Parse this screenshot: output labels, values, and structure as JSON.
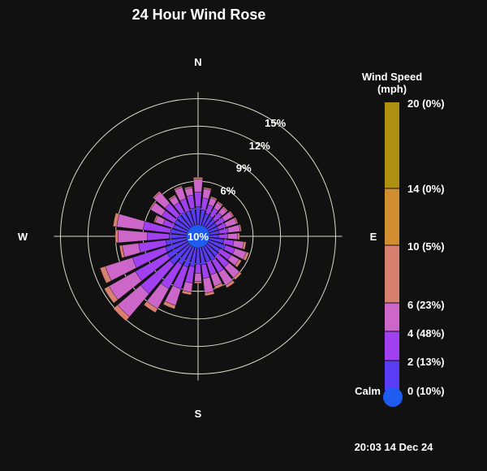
{
  "title": "24 Hour Wind Rose",
  "timestamp": "20:03 14 Dec 24",
  "compass": {
    "n": "N",
    "e": "E",
    "s": "S",
    "w": "W"
  },
  "calm_center_label": "10%",
  "colorbar": {
    "title_line1": "Wind Speed",
    "title_line2": "(mph)",
    "calm_label": "Calm",
    "levels": [
      {
        "label": "0 (10%)",
        "color": "#1e5cf0"
      },
      {
        "label": "2 (13%)",
        "color": "#5a3cf5"
      },
      {
        "label": "4 (48%)",
        "color": "#a040f0"
      },
      {
        "label": "6 (23%)",
        "color": "#cc66c8"
      },
      {
        "label": "10 (5%)",
        "color": "#d88070"
      },
      {
        "label": "14 (0%)",
        "color": "#d08e30"
      },
      {
        "label": "20 (0%)",
        "color": "#b09010"
      }
    ]
  },
  "chart_data": {
    "type": "wind-rose",
    "title": "24 Hour Wind Rose",
    "radial_ticks": [
      "6%",
      "9%",
      "12%",
      "15%"
    ],
    "radial_tick_values": [
      6,
      9,
      12,
      15
    ],
    "calm_percent": 10,
    "speed_bins": [
      "2",
      "4",
      "6",
      "10"
    ],
    "sectors": [
      {
        "dir": 0,
        "cum": [
          2.7,
          4.3,
          5.7,
          5.9
        ]
      },
      {
        "dir": 11.25,
        "cum": [
          2.4,
          3.7,
          4.7,
          4.85
        ]
      },
      {
        "dir": 22.5,
        "cum": [
          2.1,
          3.1,
          3.9,
          4.05
        ]
      },
      {
        "dir": 33.75,
        "cum": [
          2.0,
          3.0,
          3.7,
          3.85
        ]
      },
      {
        "dir": 45,
        "cum": [
          1.9,
          2.9,
          3.6,
          3.75
        ]
      },
      {
        "dir": 56.25,
        "cum": [
          1.8,
          2.8,
          3.8,
          3.95
        ]
      },
      {
        "dir": 67.5,
        "cum": [
          1.8,
          2.7,
          3.9,
          4.05
        ]
      },
      {
        "dir": 78.75,
        "cum": [
          1.8,
          2.8,
          4.1,
          4.25
        ]
      },
      {
        "dir": 90,
        "cum": [
          1.7,
          2.7,
          3.8,
          4.0
        ]
      },
      {
        "dir": 101.25,
        "cum": [
          2.3,
          3.4,
          4.5,
          4.75
        ]
      },
      {
        "dir": 112.5,
        "cum": [
          2.6,
          3.7,
          5.0,
          5.3
        ]
      },
      {
        "dir": 123.75,
        "cum": [
          2.2,
          3.6,
          4.6,
          4.9
        ]
      },
      {
        "dir": 135,
        "cum": [
          2.3,
          3.9,
          5.4,
          5.7
        ]
      },
      {
        "dir": 146.25,
        "cum": [
          2.5,
          4.0,
          5.6,
          5.9
        ]
      },
      {
        "dir": 157.5,
        "cum": [
          2.4,
          3.9,
          5.2,
          5.5
        ]
      },
      {
        "dir": 168.75,
        "cum": [
          2.6,
          4.1,
          5.7,
          6.0
        ]
      },
      {
        "dir": 180,
        "cum": [
          2.5,
          3.5,
          4.4,
          4.6
        ]
      },
      {
        "dir": 191.25,
        "cum": [
          2.8,
          4.6,
          5.6,
          5.9
        ]
      },
      {
        "dir": 202.5,
        "cum": [
          3.0,
          5.5,
          7.4,
          7.8
        ]
      },
      {
        "dir": 213.75,
        "cum": [
          3.0,
          6.0,
          8.5,
          9.0
        ]
      },
      {
        "dir": 225,
        "cum": [
          3.5,
          7.7,
          11.0,
          11.6
        ]
      },
      {
        "dir": 236.25,
        "cum": [
          3.3,
          7.3,
          10.6,
          11.2
        ]
      },
      {
        "dir": 247.5,
        "cum": [
          3.2,
          7.0,
          10.1,
          10.7
        ]
      },
      {
        "dir": 258.75,
        "cum": [
          3.0,
          6.0,
          7.8,
          8.1
        ]
      },
      {
        "dir": 270,
        "cum": [
          2.6,
          5.0,
          8.2,
          8.5
        ]
      },
      {
        "dir": 281.25,
        "cum": [
          2.5,
          5.5,
          8.4,
          8.8
        ]
      },
      {
        "dir": 292.5,
        "cum": [
          2.3,
          3.5,
          4.4,
          4.55
        ]
      },
      {
        "dir": 303.75,
        "cum": [
          2.4,
          4.0,
          5.4,
          5.55
        ]
      },
      {
        "dir": 315,
        "cum": [
          2.5,
          4.2,
          5.8,
          5.95
        ]
      },
      {
        "dir": 326.25,
        "cum": [
          2.5,
          3.7,
          4.5,
          4.65
        ]
      },
      {
        "dir": 337.5,
        "cum": [
          2.4,
          3.8,
          5.1,
          5.25
        ]
      },
      {
        "dir": 348.75,
        "cum": [
          2.6,
          4.0,
          4.8,
          4.95
        ]
      }
    ]
  }
}
